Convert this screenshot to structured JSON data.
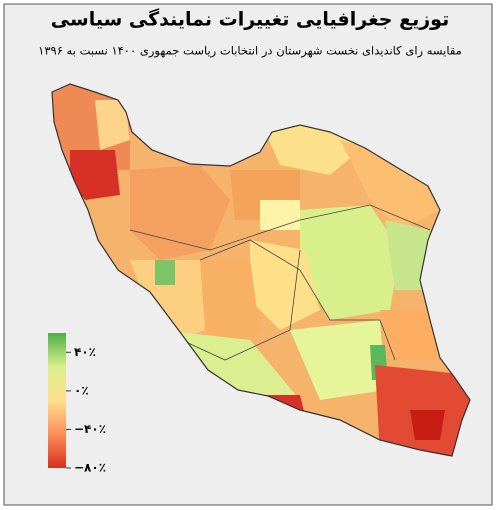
{
  "title": "توزیع جغرافیایی تغییرات نمایندگی سیاسی",
  "subtitle": "مقایسه رای کاندیدای نخست شهرستان در انتخابات ریاست جمهوری ۱۴۰۰ نسبت به ۱۳۹۶",
  "legend": {
    "ylim": [
      -80,
      60
    ],
    "ticks": [
      {
        "value": 40,
        "label": "۴۰٪"
      },
      {
        "value": 0,
        "label": "۰٪"
      },
      {
        "value": -40,
        "label": "−۴۰٪"
      },
      {
        "value": -80,
        "label": "−۸۰٪"
      }
    ],
    "colors": [
      "#d7301f",
      "#fc8d59",
      "#fee08b",
      "#d9ef8b",
      "#4daf4a"
    ]
  }
}
